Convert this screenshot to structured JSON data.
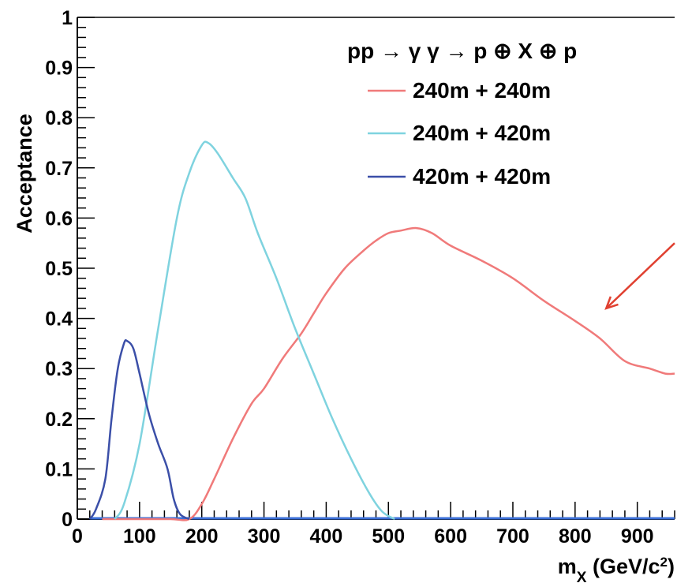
{
  "chart_data": {
    "type": "line",
    "title": "",
    "xlabel": "m",
    "xlabel_sub": "X",
    "xlabel_units_pre": " (GeV/c",
    "xlabel_units_sup": "2",
    "xlabel_units_post": ")",
    "ylabel": "Acceptance",
    "xlim": [
      0,
      960
    ],
    "ylim": [
      0,
      1
    ],
    "x_ticks": [
      "0",
      "100",
      "200",
      "300",
      "400",
      "500",
      "600",
      "700",
      "800",
      "900"
    ],
    "y_ticks": [
      "0",
      "0.1",
      "0.2",
      "0.3",
      "0.4",
      "0.5",
      "0.6",
      "0.7",
      "0.8",
      "0.9",
      "1"
    ],
    "grid": false,
    "legend": {
      "header": "pp → γ γ → p ⊕ X ⊕ p",
      "placement": "top-right"
    },
    "series": [
      {
        "name": "240m + 240m",
        "color": "#f07a7a",
        "points": [
          [
            40,
            0
          ],
          [
            100,
            0
          ],
          [
            150,
            0
          ],
          [
            180,
            0
          ],
          [
            200,
            0.03
          ],
          [
            220,
            0.08
          ],
          [
            250,
            0.16
          ],
          [
            280,
            0.23
          ],
          [
            300,
            0.26
          ],
          [
            330,
            0.32
          ],
          [
            360,
            0.37
          ],
          [
            380,
            0.41
          ],
          [
            400,
            0.45
          ],
          [
            430,
            0.5
          ],
          [
            460,
            0.535
          ],
          [
            480,
            0.555
          ],
          [
            500,
            0.57
          ],
          [
            520,
            0.575
          ],
          [
            545,
            0.58
          ],
          [
            570,
            0.57
          ],
          [
            600,
            0.545
          ],
          [
            650,
            0.515
          ],
          [
            700,
            0.48
          ],
          [
            750,
            0.435
          ],
          [
            800,
            0.395
          ],
          [
            840,
            0.36
          ],
          [
            880,
            0.315
          ],
          [
            920,
            0.3
          ],
          [
            945,
            0.29
          ],
          [
            960,
            0.29
          ]
        ]
      },
      {
        "name": "240m + 420m",
        "color": "#7fd3df",
        "points": [
          [
            60,
            0
          ],
          [
            75,
            0.03
          ],
          [
            100,
            0.15
          ],
          [
            130,
            0.38
          ],
          [
            160,
            0.6
          ],
          [
            180,
            0.69
          ],
          [
            200,
            0.745
          ],
          [
            210,
            0.75
          ],
          [
            225,
            0.73
          ],
          [
            250,
            0.68
          ],
          [
            270,
            0.64
          ],
          [
            290,
            0.57
          ],
          [
            320,
            0.48
          ],
          [
            350,
            0.38
          ],
          [
            380,
            0.29
          ],
          [
            410,
            0.2
          ],
          [
            440,
            0.12
          ],
          [
            470,
            0.05
          ],
          [
            490,
            0.015
          ],
          [
            510,
            0
          ]
        ]
      },
      {
        "name": "420m + 420m",
        "color": "#3b4fa8",
        "points": [
          [
            20,
            0
          ],
          [
            30,
            0.02
          ],
          [
            45,
            0.08
          ],
          [
            55,
            0.2
          ],
          [
            65,
            0.3
          ],
          [
            75,
            0.35
          ],
          [
            80,
            0.355
          ],
          [
            90,
            0.34
          ],
          [
            100,
            0.29
          ],
          [
            115,
            0.21
          ],
          [
            130,
            0.15
          ],
          [
            145,
            0.1
          ],
          [
            155,
            0.04
          ],
          [
            165,
            0.01
          ],
          [
            180,
            0
          ]
        ]
      }
    ],
    "annotations": [
      {
        "type": "arrow",
        "color": "#e04030",
        "from": [
          960,
          0.55
        ],
        "to": [
          850,
          0.42
        ]
      }
    ]
  }
}
